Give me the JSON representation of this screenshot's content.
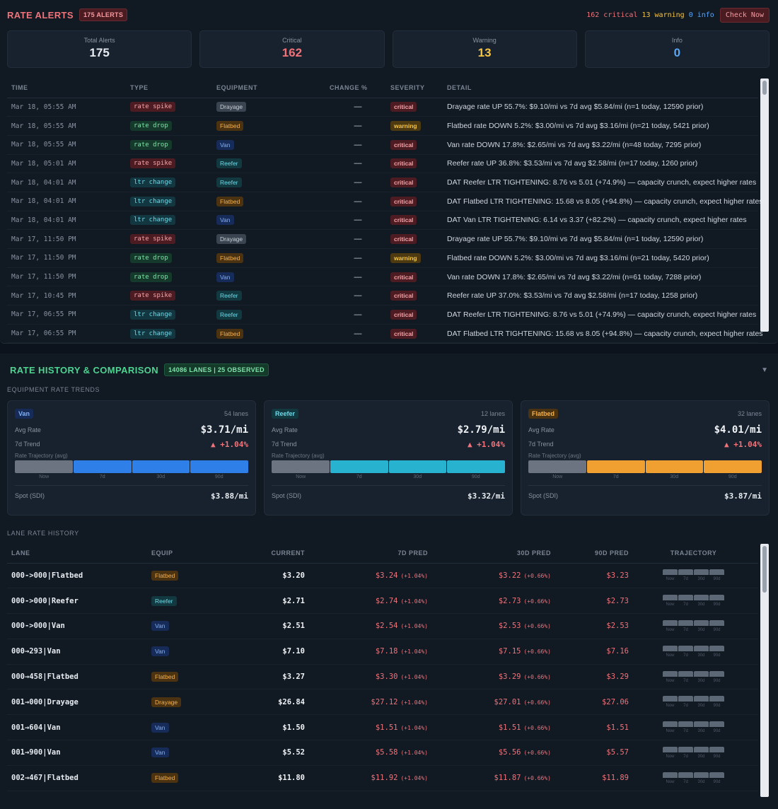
{
  "alerts": {
    "title": "RATE ALERTS",
    "count_badge": "175 ALERTS",
    "header_summary": {
      "critical": "162 critical",
      "warning": "13 warning",
      "info": "0 info"
    },
    "check_button": "Check Now",
    "stats": [
      {
        "label": "Total Alerts",
        "value": "175",
        "tone": "total"
      },
      {
        "label": "Critical",
        "value": "162",
        "tone": "crit"
      },
      {
        "label": "Warning",
        "value": "13",
        "tone": "warn"
      },
      {
        "label": "Info",
        "value": "0",
        "tone": "info"
      }
    ],
    "columns": [
      "TIME",
      "TYPE",
      "EQUIPMENT",
      "CHANGE %",
      "SEVERITY",
      "DETAIL"
    ],
    "rows": [
      {
        "time": "Mar 18, 05:55 AM",
        "type": "rate spike",
        "equipment": "Drayage",
        "change": "—",
        "severity": "critical",
        "detail": "Drayage rate UP 55.7%: $9.10/mi vs 7d avg $5.84/mi (n=1 today, 12590 prior)"
      },
      {
        "time": "Mar 18, 05:55 AM",
        "type": "rate drop",
        "equipment": "Flatbed",
        "change": "—",
        "severity": "warning",
        "detail": "Flatbed rate DOWN 5.2%: $3.00/mi vs 7d avg $3.16/mi (n=21 today, 5421 prior)"
      },
      {
        "time": "Mar 18, 05:55 AM",
        "type": "rate drop",
        "equipment": "Van",
        "change": "—",
        "severity": "critical",
        "detail": "Van rate DOWN 17.8%: $2.65/mi vs 7d avg $3.22/mi (n=48 today, 7295 prior)"
      },
      {
        "time": "Mar 18, 05:01 AM",
        "type": "rate spike",
        "equipment": "Reefer",
        "change": "—",
        "severity": "critical",
        "detail": "Reefer rate UP 36.8%: $3.53/mi vs 7d avg $2.58/mi (n=17 today, 1260 prior)"
      },
      {
        "time": "Mar 18, 04:01 AM",
        "type": "ltr change",
        "equipment": "Reefer",
        "change": "—",
        "severity": "critical",
        "detail": "DAT Reefer LTR TIGHTENING: 8.76 vs 5.01 (+74.9%) — capacity crunch, expect higher rates"
      },
      {
        "time": "Mar 18, 04:01 AM",
        "type": "ltr change",
        "equipment": "Flatbed",
        "change": "—",
        "severity": "critical",
        "detail": "DAT Flatbed LTR TIGHTENING: 15.68 vs 8.05 (+94.8%) — capacity crunch, expect higher rates"
      },
      {
        "time": "Mar 18, 04:01 AM",
        "type": "ltr change",
        "equipment": "Van",
        "change": "—",
        "severity": "critical",
        "detail": "DAT Van LTR TIGHTENING: 6.14 vs 3.37 (+82.2%) — capacity crunch, expect higher rates"
      },
      {
        "time": "Mar 17, 11:50 PM",
        "type": "rate spike",
        "equipment": "Drayage",
        "change": "—",
        "severity": "critical",
        "detail": "Drayage rate UP 55.7%: $9.10/mi vs 7d avg $5.84/mi (n=1 today, 12590 prior)"
      },
      {
        "time": "Mar 17, 11:50 PM",
        "type": "rate drop",
        "equipment": "Flatbed",
        "change": "—",
        "severity": "warning",
        "detail": "Flatbed rate DOWN 5.2%: $3.00/mi vs 7d avg $3.16/mi (n=21 today, 5420 prior)"
      },
      {
        "time": "Mar 17, 11:50 PM",
        "type": "rate drop",
        "equipment": "Van",
        "change": "—",
        "severity": "critical",
        "detail": "Van rate DOWN 17.8%: $2.65/mi vs 7d avg $3.22/mi (n=61 today, 7288 prior)"
      },
      {
        "time": "Mar 17, 10:45 PM",
        "type": "rate spike",
        "equipment": "Reefer",
        "change": "—",
        "severity": "critical",
        "detail": "Reefer rate UP 37.0%: $3.53/mi vs 7d avg $2.58/mi (n=17 today, 1258 prior)"
      },
      {
        "time": "Mar 17, 06:55 PM",
        "type": "ltr change",
        "equipment": "Reefer",
        "change": "—",
        "severity": "critical",
        "detail": "DAT Reefer LTR TIGHTENING: 8.76 vs 5.01 (+74.9%) — capacity crunch, expect higher rates"
      },
      {
        "time": "Mar 17, 06:55 PM",
        "type": "ltr change",
        "equipment": "Flatbed",
        "change": "—",
        "severity": "critical",
        "detail": "DAT Flatbed LTR TIGHTENING: 15.68 vs 8.05 (+94.8%) — capacity crunch, expect higher rates"
      }
    ]
  },
  "history": {
    "title": "RATE HISTORY & COMPARISON",
    "lanes_badge": "14086 LANES | 25 OBSERVED",
    "collapse_glyph": "▼",
    "trends_label": "EQUIPMENT RATE TRENDS",
    "equipment_cards": [
      {
        "name": "Van",
        "lanes": "54 lanes",
        "avg_label": "Avg Rate",
        "avg": "$3.71/mi",
        "trend_label": "7d Trend",
        "trend": "▲ +1.04%",
        "traj_label": "Rate Trajectory (avg)",
        "ticks": [
          "Now",
          "7d",
          "30d",
          "90d"
        ],
        "spot_label": "Spot (SDI)",
        "spot": "$3.88/mi",
        "color": "#2f7fe8",
        "badge_bg": "#162b58",
        "badge_fg": "#7fb0f7"
      },
      {
        "name": "Reefer",
        "lanes": "12 lanes",
        "avg_label": "Avg Rate",
        "avg": "$2.79/mi",
        "trend_label": "7d Trend",
        "trend": "▲ +1.04%",
        "traj_label": "Rate Trajectory (avg)",
        "ticks": [
          "Now",
          "7d",
          "30d",
          "90d"
        ],
        "spot_label": "Spot (SDI)",
        "spot": "$3.32/mi",
        "color": "#27b2cf",
        "badge_bg": "#12393f",
        "badge_fg": "#6fd8e8"
      },
      {
        "name": "Flatbed",
        "lanes": "32 lanes",
        "avg_label": "Avg Rate",
        "avg": "$4.01/mi",
        "trend_label": "7d Trend",
        "trend": "▲ +1.04%",
        "traj_label": "Rate Trajectory (avg)",
        "ticks": [
          "Now",
          "7d",
          "30d",
          "90d"
        ],
        "spot_label": "Spot (SDI)",
        "spot": "$3.87/mi",
        "color": "#f0a030",
        "badge_bg": "#4b3210",
        "badge_fg": "#f5b14c"
      }
    ],
    "lane_history_label": "LANE RATE HISTORY",
    "columns": [
      "LANE",
      "EQUIP",
      "CURRENT",
      "7D PRED",
      "30D PRED",
      "90D PRED",
      "TRAJECTORY"
    ],
    "traj_ticks": [
      "Now",
      "7d",
      "30d",
      "90d"
    ],
    "lanes": [
      {
        "lane": "000->000|Flatbed",
        "equip": "Flatbed",
        "current": "$3.20",
        "p7": "$3.24",
        "p7pct": "(+1.04%)",
        "p30": "$3.22",
        "p30pct": "(+0.66%)",
        "p90": "$3.23"
      },
      {
        "lane": "000->000|Reefer",
        "equip": "Reefer",
        "current": "$2.71",
        "p7": "$2.74",
        "p7pct": "(+1.04%)",
        "p30": "$2.73",
        "p30pct": "(+0.66%)",
        "p90": "$2.73"
      },
      {
        "lane": "000->000|Van",
        "equip": "Van",
        "current": "$2.51",
        "p7": "$2.54",
        "p7pct": "(+1.04%)",
        "p30": "$2.53",
        "p30pct": "(+0.66%)",
        "p90": "$2.53"
      },
      {
        "lane": "000→293|Van",
        "equip": "Van",
        "current": "$7.10",
        "p7": "$7.18",
        "p7pct": "(+1.04%)",
        "p30": "$7.15",
        "p30pct": "(+0.66%)",
        "p90": "$7.16"
      },
      {
        "lane": "000→458|Flatbed",
        "equip": "Flatbed",
        "current": "$3.27",
        "p7": "$3.30",
        "p7pct": "(+1.04%)",
        "p30": "$3.29",
        "p30pct": "(+0.66%)",
        "p90": "$3.29"
      },
      {
        "lane": "001→000|Drayage",
        "equip": "Drayage",
        "current": "$26.84",
        "p7": "$27.12",
        "p7pct": "(+1.04%)",
        "p30": "$27.01",
        "p30pct": "(+0.66%)",
        "p90": "$27.06"
      },
      {
        "lane": "001→604|Van",
        "equip": "Van",
        "current": "$1.50",
        "p7": "$1.51",
        "p7pct": "(+1.04%)",
        "p30": "$1.51",
        "p30pct": "(+0.66%)",
        "p90": "$1.51"
      },
      {
        "lane": "001→900|Van",
        "equip": "Van",
        "current": "$5.52",
        "p7": "$5.58",
        "p7pct": "(+1.04%)",
        "p30": "$5.56",
        "p30pct": "(+0.66%)",
        "p90": "$5.57"
      },
      {
        "lane": "002→467|Flatbed",
        "equip": "Flatbed",
        "current": "$11.80",
        "p7": "$11.92",
        "p7pct": "(+1.04%)",
        "p30": "$11.87",
        "p30pct": "(+0.66%)",
        "p90": "$11.89"
      }
    ]
  }
}
